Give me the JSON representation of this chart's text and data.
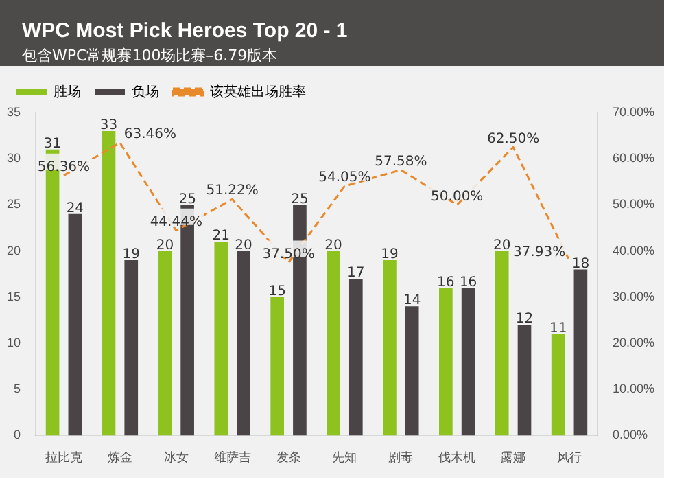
{
  "chart_data": {
    "type": "bar",
    "title": "WPC Most Pick Heroes Top 20 - 1",
    "subtitle": "包含WPC常规赛100场比赛–6.79版本",
    "categories": [
      "拉比克",
      "炼金",
      "冰女",
      "维萨吉",
      "发条",
      "先知",
      "剧毒",
      "伐木机",
      "露娜",
      "风行"
    ],
    "series": [
      {
        "name": "胜场",
        "color": "#8dc21f",
        "values": [
          31,
          33,
          20,
          21,
          15,
          20,
          19,
          16,
          20,
          11
        ]
      },
      {
        "name": "负场",
        "color": "#4a4446",
        "values": [
          24,
          19,
          25,
          20,
          25,
          17,
          14,
          16,
          12,
          18
        ]
      },
      {
        "name": "该英雄出场胜率",
        "type": "line",
        "axis": "y2",
        "color": "#e8892b",
        "line_style": "dashed",
        "marker": "none",
        "values": [
          56.36,
          63.46,
          44.44,
          51.22,
          37.5,
          54.05,
          57.58,
          50,
          62.5,
          37.93
        ],
        "value_labels": [
          "56.36%",
          "63.46%",
          "44.44%",
          "51.22%",
          "37.50%",
          "54.05%",
          "57.58%",
          "50.00%",
          "62.50%",
          "37.93%"
        ]
      }
    ],
    "ylim": [
      0,
      35
    ],
    "yticks": [
      0,
      5,
      10,
      15,
      20,
      25,
      30,
      35
    ],
    "y2lim": [
      0,
      70
    ],
    "y2ticks": [
      {
        "value": 0,
        "label": "0.00%"
      },
      {
        "value": 10,
        "label": "10.00%"
      },
      {
        "value": 20,
        "label": "20.00%"
      },
      {
        "value": 30,
        "label": "30.00%"
      },
      {
        "value": 40,
        "label": "40.00%"
      },
      {
        "value": 50,
        "label": "50.00%"
      },
      {
        "value": 60,
        "label": "60.00%"
      },
      {
        "value": 70,
        "label": "70.00%"
      }
    ],
    "grid": false,
    "legend": "top left",
    "data_labels": true
  }
}
